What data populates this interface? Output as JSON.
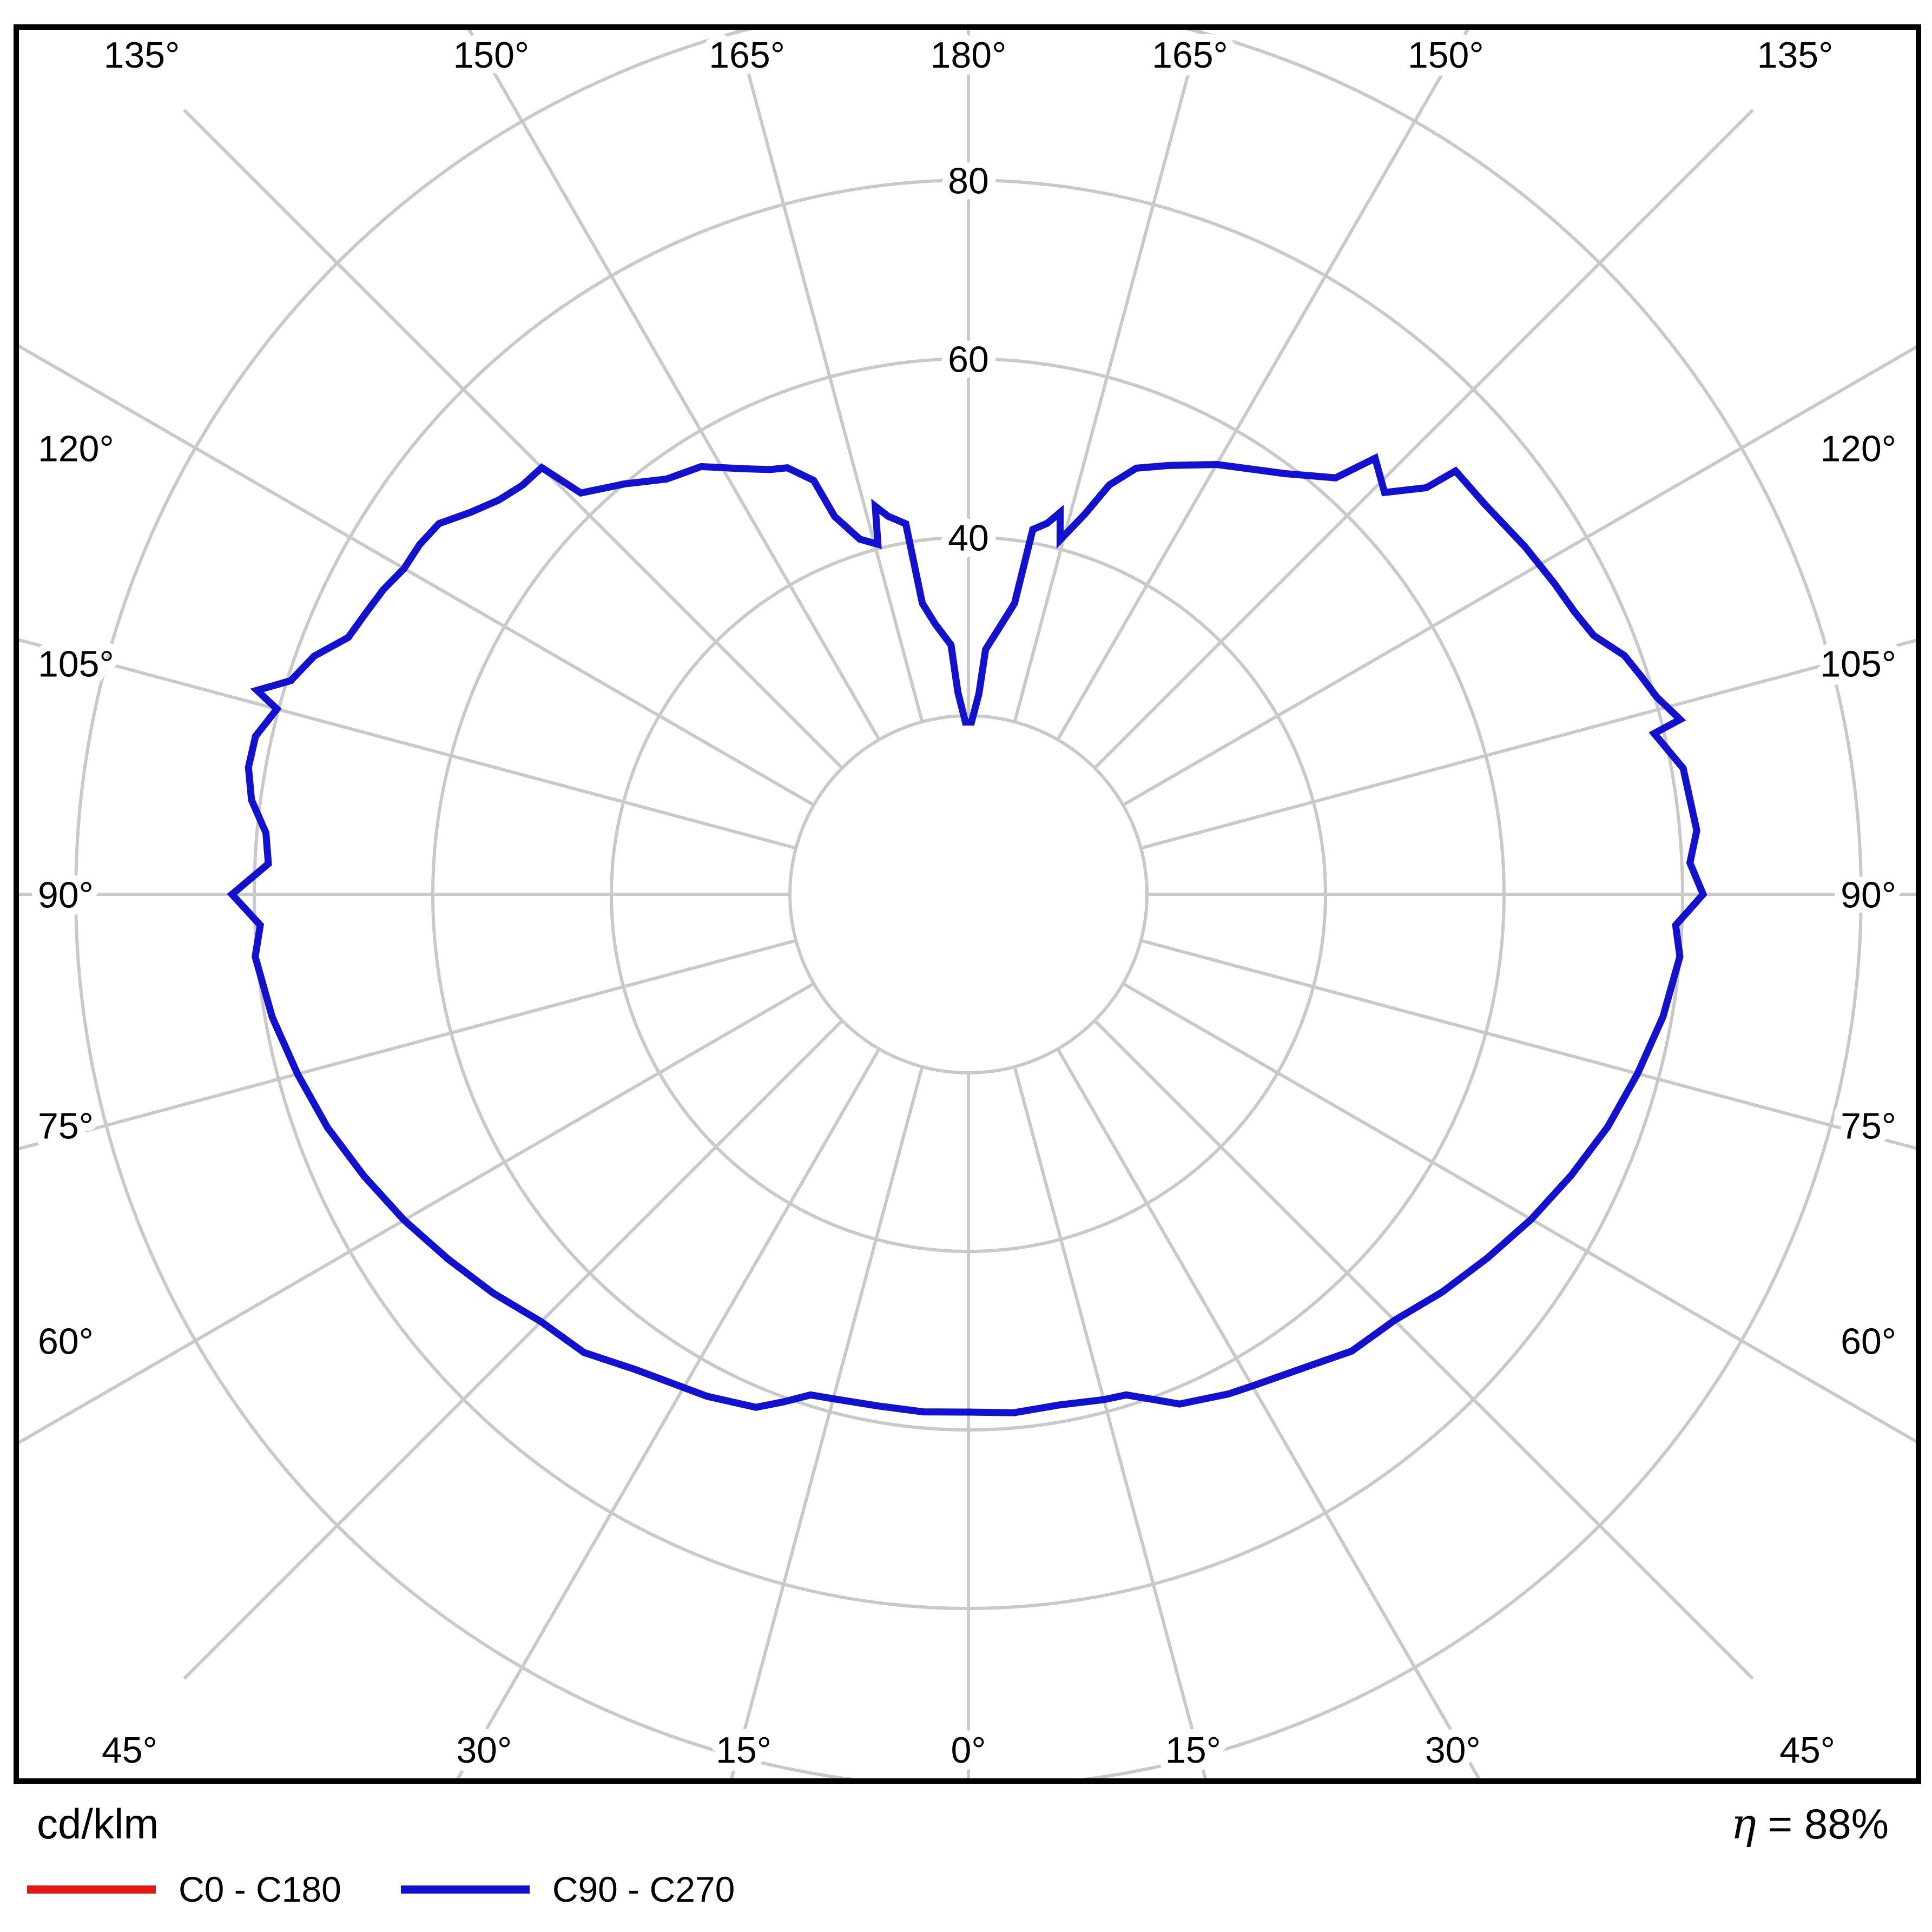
{
  "footer": {
    "units_label": "cd/klm",
    "efficiency": {
      "symbol": "η",
      "rest": " = 88%"
    }
  },
  "chart_data": {
    "type": "polar_line",
    "description": "Luminous intensity distribution curve, values in cd/klm, gamma angle in degrees (0° = nadir at bottom, 180° at top)",
    "units_label": "cd/klm",
    "efficiency_text": "η = 88%",
    "radial_axis": {
      "min": 0,
      "max": 100,
      "ring_step": 20,
      "rings": [
        20,
        40,
        60,
        80,
        100
      ],
      "labeled_ticks": [
        "40",
        "60",
        "80"
      ]
    },
    "angle_axis": {
      "spoke_step_deg": 15,
      "labels_top": [
        "135°",
        "150°",
        "165°",
        "180°",
        "165°",
        "150°",
        "135°"
      ],
      "labels_left": [
        "120°",
        "105°",
        "90°",
        "75°",
        "60°"
      ],
      "labels_right": [
        "120°",
        "105°",
        "90°",
        "75°",
        "60°"
      ],
      "labels_bottom": [
        "45°",
        "30°",
        "15°",
        "0°",
        "15°",
        "30°",
        "45°"
      ]
    },
    "grid_color": "#c9c9c9",
    "frame_color": "#000000",
    "series": [
      {
        "name": "C0 - C180",
        "color": "#e51616",
        "visible_in_plot": false,
        "points_left": [],
        "points_right": []
      },
      {
        "name": "C90 - C270",
        "color": "#1111cf",
        "visible_in_plot": true,
        "points_left": [
          [
            0,
            58
          ],
          [
            5,
            58.2
          ],
          [
            10,
            58.2
          ],
          [
            15,
            58.5
          ],
          [
            17.5,
            58.8
          ],
          [
            20,
            60.5
          ],
          [
            22.5,
            62.2
          ],
          [
            27.5,
            63.4
          ],
          [
            30,
            63.8
          ],
          [
            35,
            65
          ],
          [
            40,
            67
          ],
          [
            45,
            67.7
          ],
          [
            50,
            69.5
          ],
          [
            55,
            71.2
          ],
          [
            60,
            73
          ],
          [
            65,
            74.7
          ],
          [
            70,
            76.4
          ],
          [
            75,
            77.8
          ],
          [
            80,
            79.2
          ],
          [
            85,
            80.2
          ],
          [
            87.5,
            79.4
          ],
          [
            90,
            82.5
          ],
          [
            92.5,
            78.5
          ],
          [
            95,
            79
          ],
          [
            97.5,
            81
          ],
          [
            100,
            81.9
          ],
          [
            102.5,
            81.8
          ],
          [
            105,
            80.2
          ],
          [
            106,
            82.9
          ],
          [
            107.5,
            79.6
          ],
          [
            110,
            78
          ],
          [
            112.5,
            75.2
          ],
          [
            115,
            74.5
          ],
          [
            117.5,
            73.9
          ],
          [
            120,
            73
          ],
          [
            122.5,
            72.9
          ],
          [
            125,
            72.4
          ],
          [
            127.5,
            70.3
          ],
          [
            130,
            68.7
          ],
          [
            132.5,
            67.8
          ],
          [
            135,
            67.6
          ],
          [
            136,
            62.5
          ],
          [
            140,
            60
          ],
          [
            144,
            57.5
          ],
          [
            148,
            56.5
          ],
          [
            152,
            54
          ],
          [
            155,
            52.5
          ],
          [
            157,
            51.9
          ],
          [
            159.5,
            49.5
          ],
          [
            160.5,
            44.9
          ],
          [
            163,
            41.6
          ],
          [
            165.5,
            40.5
          ],
          [
            166.5,
            44.7
          ],
          [
            168,
            43.3
          ],
          [
            170.4,
            42.1
          ],
          [
            171,
            33
          ],
          [
            173,
            30.5
          ],
          [
            176,
            28
          ],
          [
            177,
            22.7
          ],
          [
            179,
            19.3
          ],
          [
            180,
            19.3
          ]
        ],
        "points_right": [
          [
            0,
            58
          ],
          [
            5,
            58.3
          ],
          [
            10,
            58.1
          ],
          [
            15,
            58.6
          ],
          [
            17.5,
            58.8
          ],
          [
            20,
            60.2
          ],
          [
            22.5,
            61.8
          ],
          [
            27.5,
            63.1
          ],
          [
            30,
            63.6
          ],
          [
            35,
            64.9
          ],
          [
            40,
            66.8
          ],
          [
            45,
            67.5
          ],
          [
            50,
            69.3
          ],
          [
            55,
            71
          ],
          [
            60,
            72.8
          ],
          [
            65,
            74.5
          ],
          [
            70,
            76.2
          ],
          [
            75,
            77.6
          ],
          [
            80,
            79
          ],
          [
            85,
            80
          ],
          [
            87.5,
            79.3
          ],
          [
            90,
            82.3
          ],
          [
            92.5,
            80.9
          ],
          [
            95,
            81.9
          ],
          [
            100,
            81.3
          ],
          [
            103.2,
            78.9
          ],
          [
            103.8,
            82.1
          ],
          [
            106,
            80.2
          ],
          [
            108,
            79.2
          ],
          [
            110,
            78.2
          ],
          [
            112.5,
            75.8
          ],
          [
            115,
            74.9
          ],
          [
            118,
            74.3
          ],
          [
            122,
            73.5
          ],
          [
            127,
            72.5
          ],
          [
            131,
            72.3
          ],
          [
            131.6,
            68.6
          ],
          [
            134,
            64.8
          ],
          [
            137,
            66.8
          ],
          [
            138.6,
            62.2
          ],
          [
            143,
            59
          ],
          [
            150,
            55.6
          ],
          [
            155,
            53
          ],
          [
            158.5,
            51.3
          ],
          [
            161,
            48.5
          ],
          [
            163,
            44.5
          ],
          [
            165.5,
            41
          ],
          [
            166.5,
            44
          ],
          [
            168,
            42.5
          ],
          [
            170,
            41.5
          ],
          [
            171,
            33
          ],
          [
            173,
            30.5
          ],
          [
            176,
            27.5
          ],
          [
            177,
            22.5
          ],
          [
            179,
            19.3
          ],
          [
            180,
            19.3
          ]
        ]
      }
    ],
    "legend": [
      {
        "label": "C0 - C180",
        "color": "#e51616"
      },
      {
        "label": "C90 - C270",
        "color": "#1111cf"
      }
    ]
  }
}
